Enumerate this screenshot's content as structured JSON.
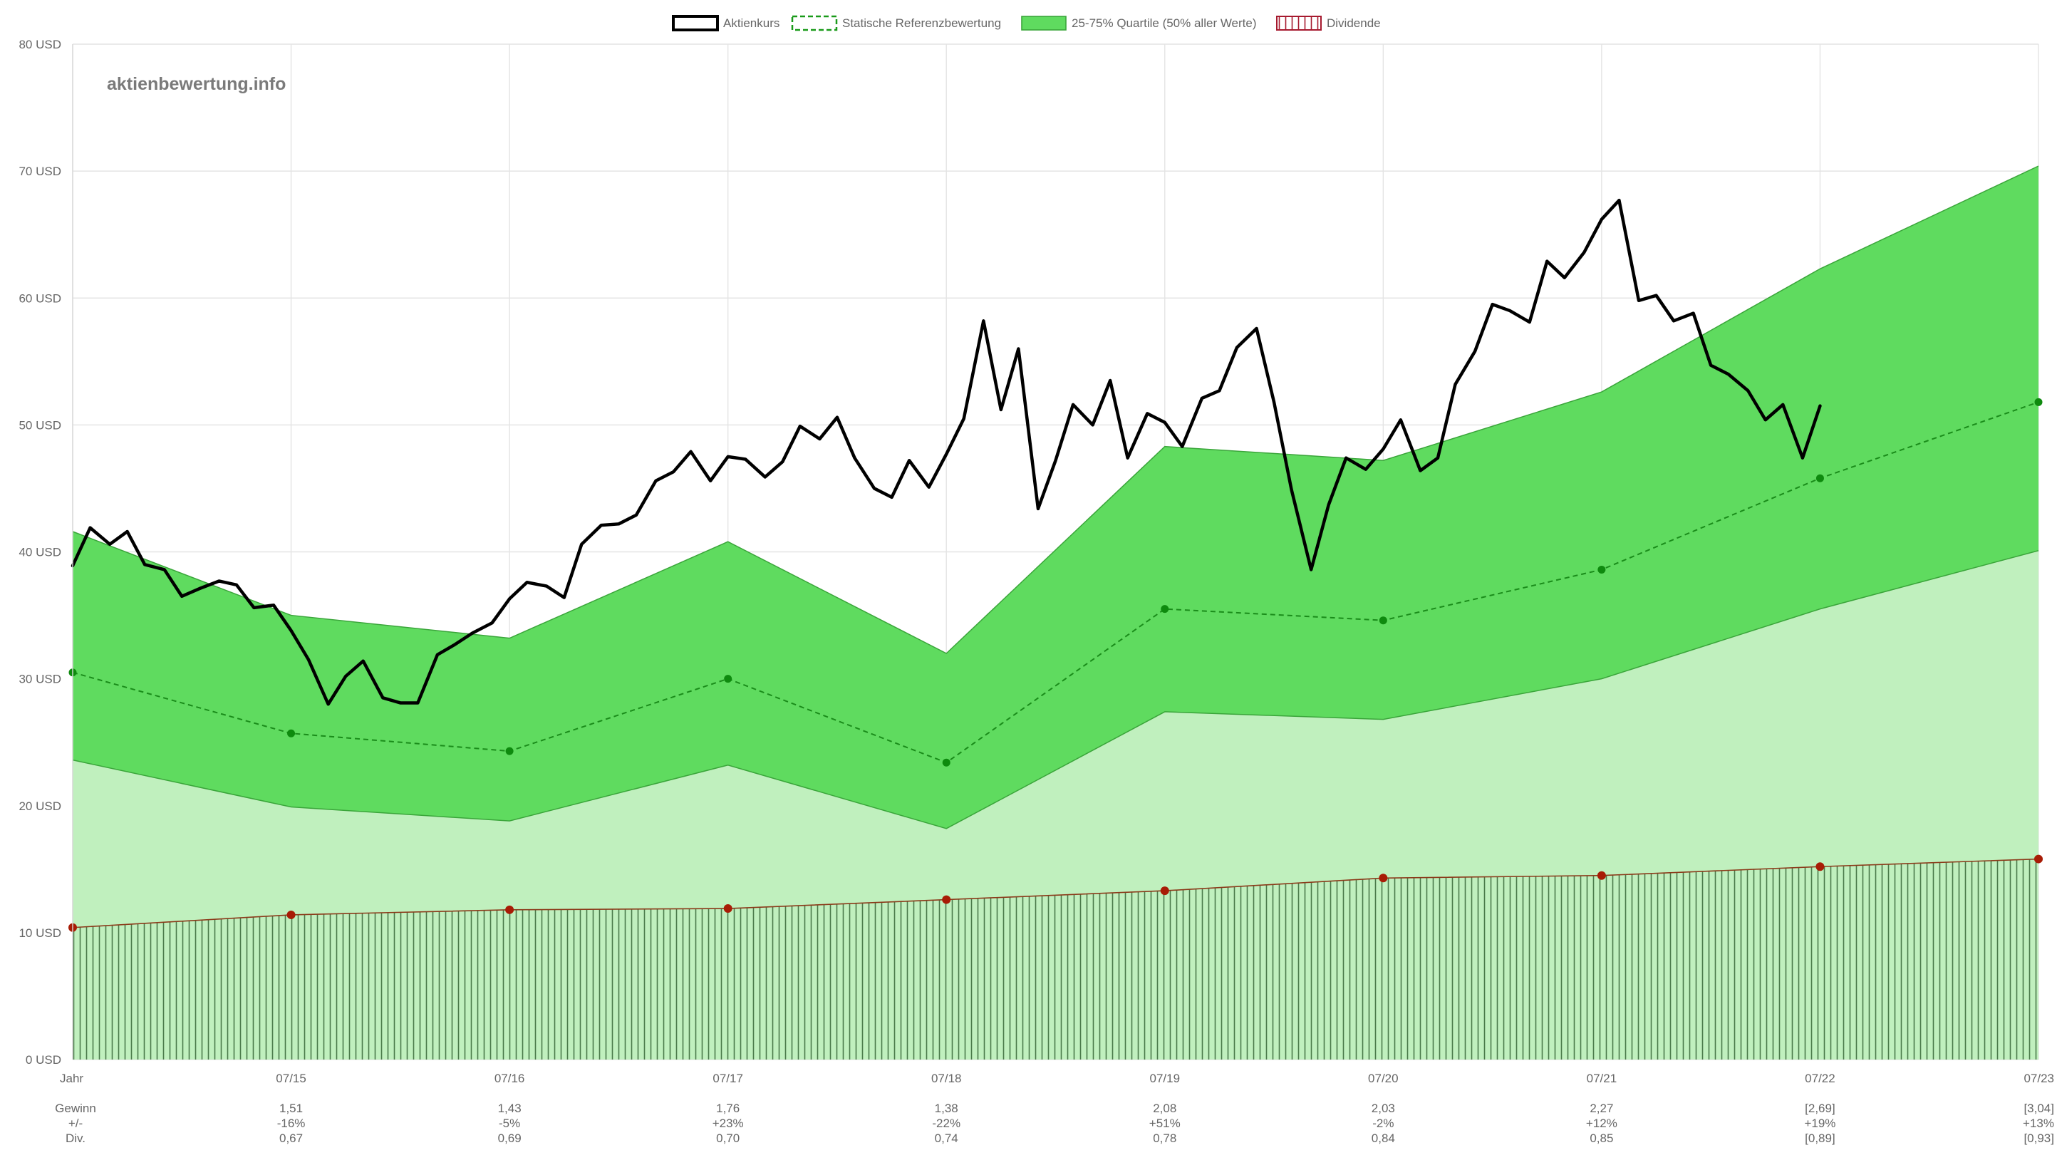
{
  "chart_data": {
    "type": "line",
    "watermark": "aktienbewertung.info",
    "ylim": [
      0,
      80
    ],
    "y_ticks": [
      0,
      10,
      20,
      30,
      40,
      50,
      60,
      70,
      80
    ],
    "y_tick_labels": [
      "0 USD",
      "10 USD",
      "20 USD",
      "30 USD",
      "40 USD",
      "50 USD",
      "60 USD",
      "70 USD",
      "80 USD"
    ],
    "x_range": [
      2014.5,
      2023.5
    ],
    "grid": true,
    "legend": {
      "placement": "top-center",
      "entries": [
        {
          "key": "price",
          "label": "Aktienkurs",
          "color": "#000000",
          "style": "solid-box"
        },
        {
          "key": "reference",
          "label": "Statische Referenzbewertung",
          "color": "#1a9a1a",
          "style": "dashed-box"
        },
        {
          "key": "quartile",
          "label": "25-75% Quartile (50% aller Werte)",
          "color": "#5fdb5f",
          "style": "filled-box"
        },
        {
          "key": "dividend",
          "label": "Dividende",
          "color": "#a6192e",
          "style": "hatched-box"
        }
      ]
    },
    "categories": [
      {
        "x": 2014.5,
        "label": "Jahr",
        "gewinn": "",
        "change": "",
        "div": ""
      },
      {
        "x": 2015.5,
        "label": "07/15",
        "gewinn": "1,51",
        "change": "-16%",
        "div": "0,67"
      },
      {
        "x": 2016.5,
        "label": "07/16",
        "gewinn": "1,43",
        "change": "-5%",
        "div": "0,69"
      },
      {
        "x": 2017.5,
        "label": "07/17",
        "gewinn": "1,76",
        "change": "+23%",
        "div": "0,70"
      },
      {
        "x": 2018.5,
        "label": "07/18",
        "gewinn": "1,38",
        "change": "-22%",
        "div": "0,74"
      },
      {
        "x": 2019.5,
        "label": "07/19",
        "gewinn": "2,08",
        "change": "+51%",
        "div": "0,78"
      },
      {
        "x": 2020.5,
        "label": "07/20",
        "gewinn": "2,03",
        "change": "-2%",
        "div": "0,84"
      },
      {
        "x": 2021.5,
        "label": "07/21",
        "gewinn": "2,27",
        "change": "+12%",
        "div": "0,85"
      },
      {
        "x": 2022.5,
        "label": "07/22",
        "gewinn": "[2,69]",
        "change": "+19%",
        "div": "[0,89]"
      },
      {
        "x": 2023.5,
        "label": "07/23",
        "gewinn": "[3,04]",
        "change": "+13%",
        "div": "[0,93]"
      }
    ],
    "row_labels": {
      "gewinn": "Gewinn",
      "change": "+/-",
      "div": "Div."
    },
    "series": [
      {
        "name": "Statische Referenzbewertung",
        "key": "reference",
        "x": [
          2014.5,
          2015.5,
          2016.5,
          2017.5,
          2018.5,
          2019.5,
          2020.5,
          2021.5,
          2022.5,
          2023.5
        ],
        "values": [
          30.5,
          25.7,
          24.3,
          30.0,
          23.4,
          35.5,
          34.6,
          38.6,
          45.8,
          51.8
        ]
      },
      {
        "name": "25-75% Quartile (50% aller Werte)",
        "key": "quartile",
        "x": [
          2014.5,
          2015.5,
          2016.5,
          2017.5,
          2018.5,
          2019.5,
          2020.5,
          2021.5,
          2022.5,
          2023.5
        ],
        "upper": [
          41.6,
          35.0,
          33.2,
          40.8,
          32.0,
          48.3,
          47.2,
          52.6,
          62.3,
          70.4
        ],
        "lower": [
          23.6,
          19.9,
          18.8,
          23.2,
          18.2,
          27.4,
          26.8,
          30.0,
          35.5,
          40.1
        ]
      },
      {
        "name": "Dividende",
        "key": "dividend",
        "x": [
          2014.5,
          2015.5,
          2016.5,
          2017.5,
          2018.5,
          2019.5,
          2020.5,
          2021.5,
          2022.5,
          2023.5
        ],
        "values": [
          10.4,
          11.4,
          11.8,
          11.9,
          12.6,
          13.3,
          14.3,
          14.5,
          15.2,
          15.8
        ]
      },
      {
        "name": "Aktienkurs",
        "key": "price",
        "x": [
          2014.5,
          2014.58,
          2014.67,
          2014.75,
          2014.83,
          2014.92,
          2015.0,
          2015.08,
          2015.17,
          2015.25,
          2015.33,
          2015.42,
          2015.5,
          2015.58,
          2015.67,
          2015.75,
          2015.83,
          2015.92,
          2016.0,
          2016.08,
          2016.17,
          2016.25,
          2016.33,
          2016.42,
          2016.5,
          2016.58,
          2016.67,
          2016.75,
          2016.83,
          2016.92,
          2017.0,
          2017.08,
          2017.17,
          2017.25,
          2017.33,
          2017.42,
          2017.5,
          2017.58,
          2017.67,
          2017.75,
          2017.83,
          2017.92,
          2018.0,
          2018.08,
          2018.17,
          2018.25,
          2018.33,
          2018.42,
          2018.5,
          2018.58,
          2018.67,
          2018.75,
          2018.83,
          2018.92,
          2019.0,
          2019.08,
          2019.17,
          2019.25,
          2019.33,
          2019.42,
          2019.5,
          2019.58,
          2019.67,
          2019.75,
          2019.83,
          2019.92,
          2020.0,
          2020.08,
          2020.17,
          2020.25,
          2020.33,
          2020.42,
          2020.5,
          2020.58,
          2020.67,
          2020.75,
          2020.83,
          2020.92,
          2021.0,
          2021.08,
          2021.17,
          2021.25,
          2021.33,
          2021.42,
          2021.5,
          2021.58,
          2021.67,
          2021.75,
          2021.83,
          2021.92,
          2022.0,
          2022.08,
          2022.17,
          2022.25,
          2022.33,
          2022.42,
          2022.5
        ],
        "values": [
          38.9,
          41.9,
          40.6,
          41.6,
          39.0,
          38.6,
          36.5,
          37.1,
          37.7,
          37.4,
          35.6,
          35.8,
          33.8,
          31.5,
          28.0,
          30.2,
          31.4,
          28.5,
          28.1,
          28.1,
          31.9,
          32.7,
          33.6,
          34.4,
          36.3,
          37.6,
          37.3,
          36.4,
          40.6,
          42.1,
          42.2,
          42.9,
          45.6,
          46.3,
          47.9,
          45.6,
          47.5,
          47.3,
          45.9,
          47.1,
          49.9,
          48.9,
          50.6,
          47.4,
          45.0,
          44.3,
          47.2,
          45.1,
          47.7,
          50.5,
          58.2,
          51.2,
          56.0,
          43.4,
          47.2,
          51.6,
          50.0,
          53.5,
          47.4,
          50.9,
          50.2,
          48.3,
          52.1,
          52.7,
          56.1,
          57.6,
          51.8,
          44.9,
          38.6,
          43.7,
          47.4,
          46.5,
          48.1,
          50.4,
          46.4,
          47.4,
          53.2,
          55.8,
          59.5,
          59.0,
          58.1,
          62.9,
          61.6,
          63.6,
          66.2,
          67.7,
          59.8,
          60.2,
          58.2,
          58.8,
          54.7,
          54.0,
          52.7,
          50.4,
          51.6,
          47.4,
          51.5
        ]
      }
    ]
  },
  "colors": {
    "price": "#000000",
    "reference_line": "#1a8c1a",
    "reference_point": "#0e8a0e",
    "quartile_fill": "#5fdb5f",
    "quartile_edge": "#3aa53a",
    "lower_fill": "#c0f0be",
    "dividend_line": "#8b3a1a",
    "dividend_point": "#a81c06",
    "dividend_hatch": "#4a7a4a",
    "grid": "#e4e4e4",
    "axis_text": "#666666"
  }
}
